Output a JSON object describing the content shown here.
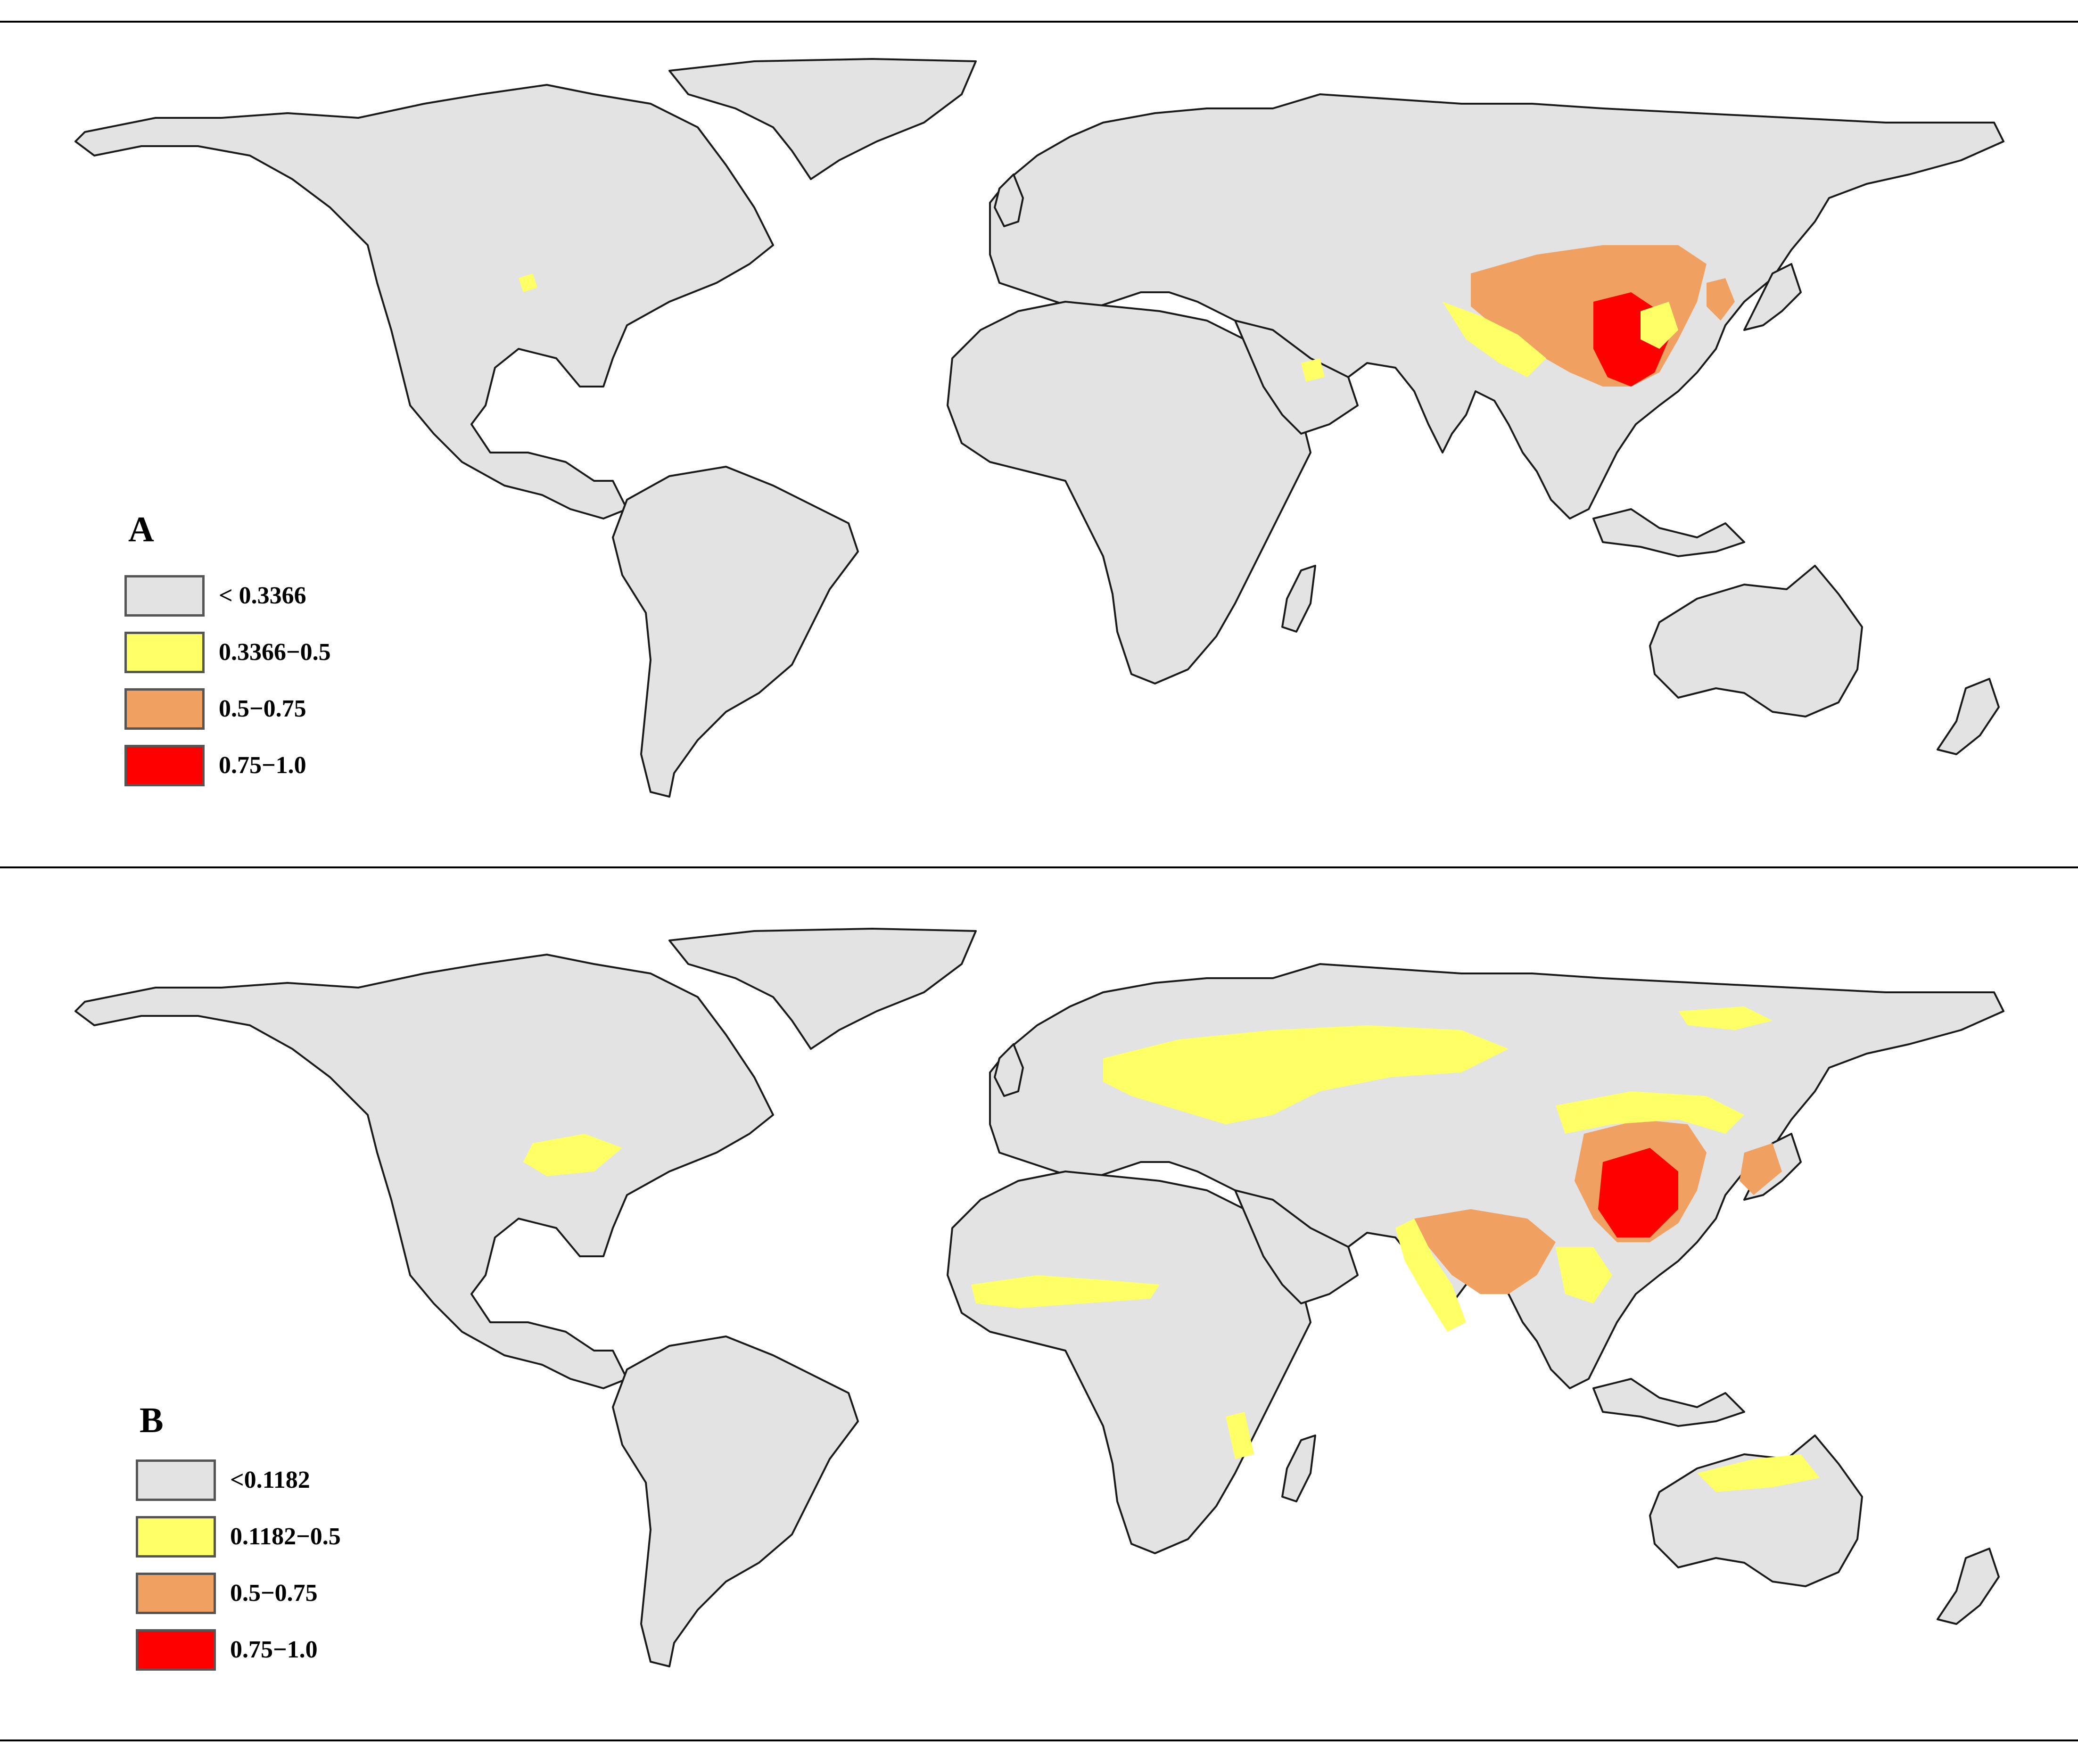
{
  "colors": {
    "no_data": "#e3e3e3",
    "low": "#ffff66",
    "mid": "#f0a060",
    "high": "#ff0000",
    "outline": "#1a1a1a"
  },
  "panels": [
    {
      "label": "A",
      "legend": [
        {
          "text": "< 0.3366",
          "color": "#e3e3e3"
        },
        {
          "text": "0.3366−0.5",
          "color": "#ffff66"
        },
        {
          "text": "0.5−0.75",
          "color": "#f0a060"
        },
        {
          "text": "0.75−1.0",
          "color": "#ff0000"
        }
      ]
    },
    {
      "label": "B",
      "legend": [
        {
          "text": "<0.1182",
          "color": "#e3e3e3"
        },
        {
          "text": "0.1182−0.5",
          "color": "#ffff66"
        },
        {
          "text": "0.5−0.75",
          "color": "#f0a060"
        },
        {
          "text": "0.75−1.0",
          "color": "#ff0000"
        }
      ]
    }
  ]
}
